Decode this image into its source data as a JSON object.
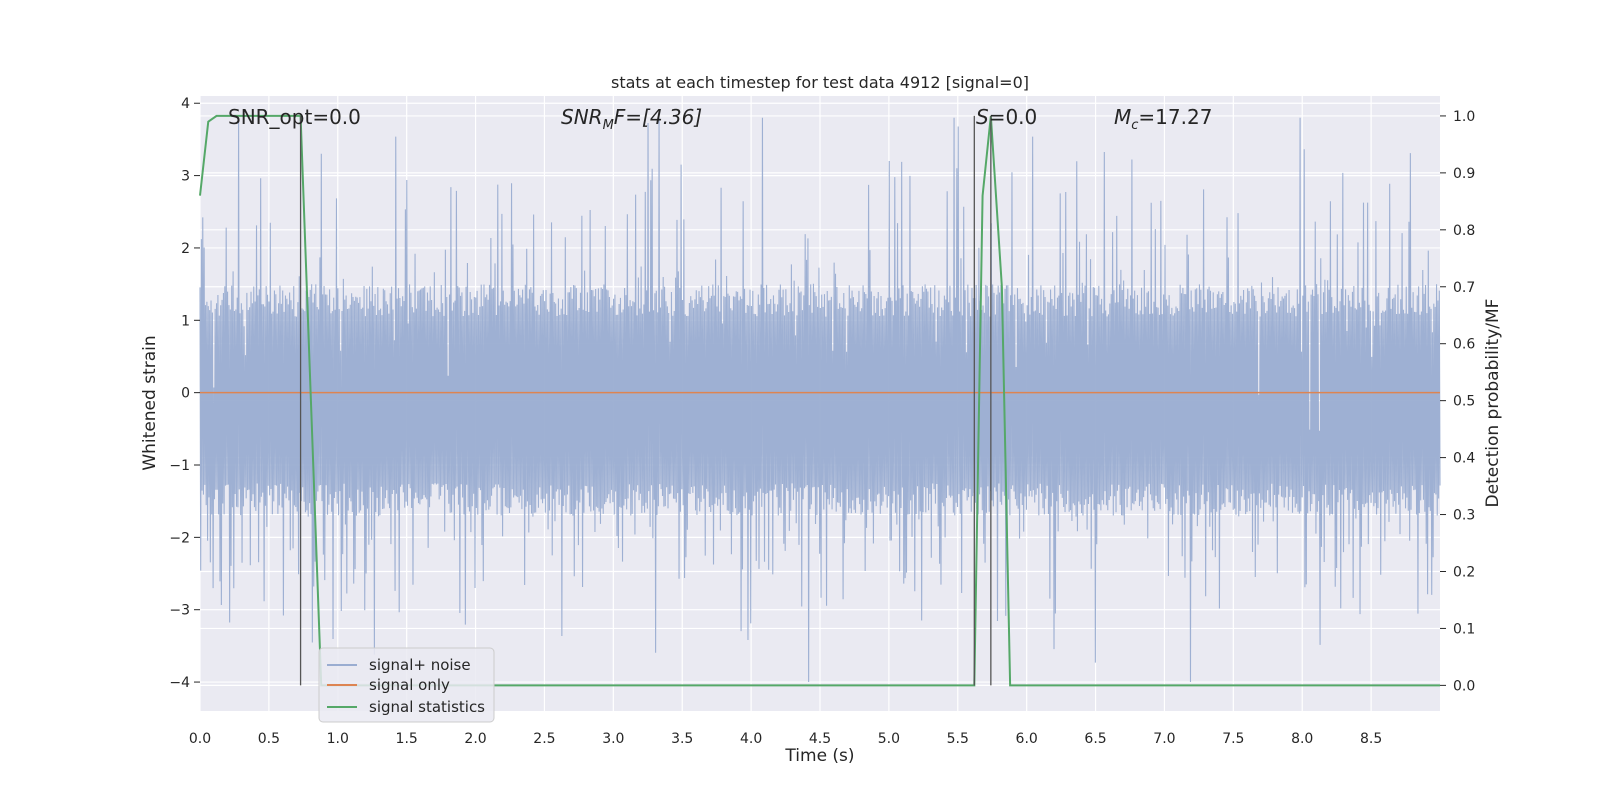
{
  "chart_data": {
    "type": "line",
    "title": "stats at each timestep for test data 4912 [signal=0]",
    "xlabel": "Time (s)",
    "ylabel": "Whitened strain",
    "ylabel_right": "Detection probability/MF",
    "xlim": [
      0.0,
      9.0
    ],
    "ylim": [
      -4.4,
      4.1
    ],
    "ylim_right": [
      -0.045,
      1.035
    ],
    "x_ticks": [
      "0.0",
      "0.5",
      "1.0",
      "1.5",
      "2.0",
      "2.5",
      "3.0",
      "3.5",
      "4.0",
      "4.5",
      "5.0",
      "5.5",
      "6.0",
      "6.5",
      "7.0",
      "7.5",
      "8.0",
      "8.5"
    ],
    "y_ticks": [
      "4",
      "3",
      "2",
      "1",
      "0",
      "−1",
      "−2",
      "−3",
      "−4"
    ],
    "y_ticks_right": [
      "1.0",
      "0.9",
      "0.8",
      "0.7",
      "0.6",
      "0.5",
      "0.4",
      "0.3",
      "0.2",
      "0.1",
      "0.0"
    ],
    "grid": true,
    "legend_position": "lower-left",
    "annotations": {
      "snr_opt": "SNR_opt=0.0",
      "snr_mf_main": "SNR",
      "snr_mf_sub": "M",
      "snr_mf_tail": "F=[4.36]",
      "s_italic": "S",
      "s_tail": "=0.0",
      "mc_main": "M",
      "mc_sub": "c",
      "mc_tail": "=17.27"
    },
    "series": [
      {
        "name": "signal+ noise",
        "color": "#9aadd1",
        "description": "whitened noise, dense fluctuation",
        "noise_core_range": [
          -1.7,
          1.5
        ],
        "noise_extreme_range": [
          -4.0,
          3.8
        ],
        "sample_count": 1800
      },
      {
        "name": "signal only",
        "color": "#dd8452",
        "x": [
          0.0,
          9.0
        ],
        "y": [
          0.0,
          0.0
        ]
      },
      {
        "name": "signal statistics",
        "color": "#55a868",
        "axis": "right",
        "x": [
          0.0,
          0.06,
          0.12,
          0.5,
          0.73,
          0.88,
          5.62,
          5.68,
          5.74,
          5.82,
          5.88,
          9.0
        ],
        "y": [
          0.86,
          0.99,
          1.0,
          1.0,
          1.0,
          0.0,
          0.0,
          0.86,
          1.0,
          0.7,
          0.0,
          0.0
        ]
      }
    ],
    "markers": {
      "color": "#555555",
      "lines": [
        {
          "x": 0.73,
          "y_from": 1.0,
          "y_to": 0.0
        },
        {
          "x": 5.62,
          "y_from": 1.0,
          "y_to": 0.0
        },
        {
          "x": 5.74,
          "y_from": 1.0,
          "y_to": 0.0
        }
      ]
    }
  }
}
